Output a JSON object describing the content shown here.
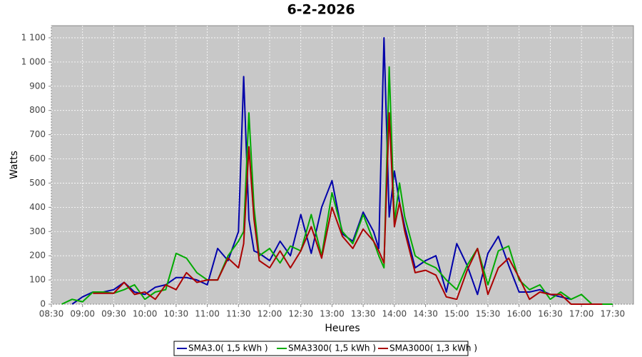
{
  "chart_data": {
    "type": "line",
    "title": "6-2-2026",
    "x_label": "Heures",
    "y_label": "Watts",
    "x": [
      "08:40",
      "08:50",
      "09:00",
      "09:10",
      "09:20",
      "09:30",
      "09:40",
      "09:50",
      "10:00",
      "10:10",
      "10:20",
      "10:30",
      "10:40",
      "10:50",
      "11:00",
      "11:10",
      "11:20",
      "11:30",
      "11:35",
      "11:40",
      "11:45",
      "11:50",
      "12:00",
      "12:10",
      "12:20",
      "12:30",
      "12:40",
      "12:50",
      "13:00",
      "13:10",
      "13:20",
      "13:30",
      "13:40",
      "13:45",
      "13:50",
      "13:55",
      "14:00",
      "14:05",
      "14:10",
      "14:20",
      "14:30",
      "14:40",
      "14:50",
      "15:00",
      "15:10",
      "15:20",
      "15:30",
      "15:40",
      "15:50",
      "16:00",
      "16:10",
      "16:20",
      "16:30",
      "16:40",
      "16:50",
      "17:00",
      "17:10",
      "17:20",
      "17:30"
    ],
    "series": [
      {
        "name": "SMA3.0( 1,5 kWh )",
        "color": "#0000aa",
        "values": [
          null,
          0,
          30,
          50,
          50,
          60,
          90,
          50,
          40,
          70,
          80,
          110,
          110,
          100,
          80,
          230,
          180,
          300,
          940,
          350,
          220,
          210,
          180,
          260,
          200,
          370,
          210,
          400,
          510,
          290,
          260,
          380,
          300,
          230,
          1100,
          360,
          550,
          420,
          320,
          150,
          180,
          200,
          50,
          250,
          160,
          40,
          210,
          280,
          160,
          50,
          50,
          60,
          40,
          30,
          20,
          null,
          null,
          null,
          null
        ]
      },
      {
        "name": "SMA3300( 1,5 kWh )",
        "color": "#00aa00",
        "values": [
          0,
          20,
          10,
          50,
          50,
          45,
          60,
          80,
          20,
          50,
          60,
          210,
          190,
          130,
          100,
          100,
          200,
          260,
          300,
          790,
          400,
          200,
          230,
          170,
          240,
          220,
          370,
          200,
          460,
          300,
          250,
          370,
          260,
          200,
          150,
          980,
          340,
          500,
          360,
          200,
          170,
          150,
          100,
          60,
          160,
          230,
          80,
          220,
          240,
          100,
          60,
          80,
          20,
          50,
          20,
          40,
          0,
          0,
          0
        ]
      },
      {
        "name": "SMA3000( 1,3 kWh )",
        "color": "#aa0000",
        "values": [
          null,
          null,
          null,
          45,
          45,
          45,
          90,
          40,
          50,
          20,
          80,
          60,
          130,
          90,
          100,
          100,
          190,
          150,
          250,
          650,
          350,
          180,
          150,
          220,
          150,
          220,
          320,
          190,
          400,
          280,
          230,
          310,
          260,
          220,
          170,
          790,
          320,
          420,
          300,
          130,
          140,
          120,
          30,
          20,
          140,
          230,
          40,
          150,
          190,
          110,
          20,
          50,
          40,
          40,
          0,
          0,
          0,
          0,
          null
        ]
      }
    ],
    "xlim": [
      "08:30",
      "17:50"
    ],
    "xticks": [
      "08:30",
      "09:00",
      "09:30",
      "10:00",
      "10:30",
      "11:00",
      "11:30",
      "12:00",
      "12:30",
      "13:00",
      "13:30",
      "14:00",
      "14:30",
      "15:00",
      "15:30",
      "16:00",
      "16:30",
      "17:00",
      "17:30"
    ],
    "ylim": [
      0,
      1150
    ],
    "yticks": [
      0,
      100,
      200,
      300,
      400,
      500,
      600,
      700,
      800,
      900,
      {
        "value": 1000,
        "label": "1 000"
      },
      {
        "value": 1100,
        "label": "1 100"
      }
    ],
    "grid": true
  }
}
